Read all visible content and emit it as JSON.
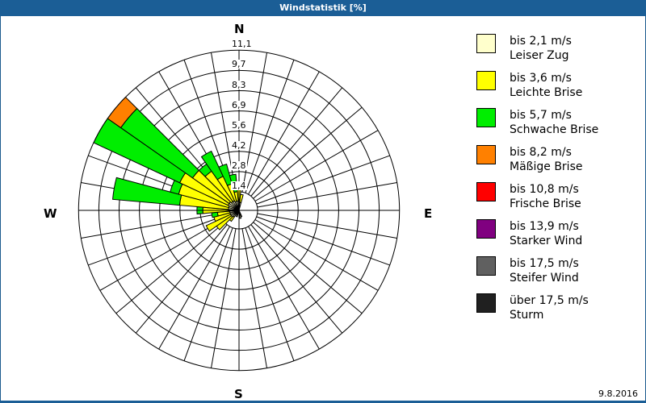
{
  "window": {
    "title": "Windstatistik [%]"
  },
  "footer": {
    "date": "9.8.2016"
  },
  "compass": {
    "n": "N",
    "e": "E",
    "s": "S",
    "w": "W"
  },
  "chart_data": {
    "type": "polar-bar (wind rose)",
    "title": "Windstatistik [%]",
    "radial_ticks": [
      "1,4",
      "2,8",
      "4,2",
      "5,6",
      "6,9",
      "8,3",
      "9,7",
      "11,1"
    ],
    "radial_range": [
      0,
      11.1
    ],
    "sector_width_deg": 10,
    "classes": [
      {
        "label": "bis 2,1 m/s",
        "name": "Leiser Zug",
        "color": "#ffffcc"
      },
      {
        "label": "bis 3,6 m/s",
        "name": "Leichte Brise",
        "color": "#ffff00"
      },
      {
        "label": "bis 5,7 m/s",
        "name": "Schwache Brise",
        "color": "#00ee00"
      },
      {
        "label": "bis 8,2 m/s",
        "name": "Mäßige Brise",
        "color": "#ff8000"
      },
      {
        "label": "bis 10,8 m/s",
        "name": "Frische Brise",
        "color": "#ff0000"
      },
      {
        "label": "bis 13,9 m/s",
        "name": "Starker Wind",
        "color": "#800080"
      },
      {
        "label": "bis 17,5 m/s",
        "name": "Steifer Wind",
        "color": "#606060"
      },
      {
        "label": "über 17,5 m/s",
        "name": "Sturm",
        "color": "#202020"
      }
    ],
    "sectors_note": "cumulative percent per class at sector direction (degrees)",
    "sectors": [
      {
        "dir": 0,
        "cum": [
          0.8,
          1.6,
          2.0
        ]
      },
      {
        "dir": 10,
        "cum": [
          0.6,
          1.2,
          1.2
        ]
      },
      {
        "dir": 160,
        "cum": [
          0.5,
          0.5,
          0.5
        ]
      },
      {
        "dir": 170,
        "cum": [
          0.6,
          0.6,
          0.6
        ]
      },
      {
        "dir": 200,
        "cum": [
          0.5,
          0.5,
          0.5
        ]
      },
      {
        "dir": 220,
        "cum": [
          0.6,
          1.0,
          1.0
        ]
      },
      {
        "dir": 230,
        "cum": [
          0.7,
          2.0,
          2.0
        ]
      },
      {
        "dir": 240,
        "cum": [
          0.7,
          2.6,
          2.6
        ]
      },
      {
        "dir": 250,
        "cum": [
          0.7,
          1.9,
          1.9
        ]
      },
      {
        "dir": 260,
        "cum": [
          0.7,
          1.6,
          2.0
        ]
      },
      {
        "dir": 270,
        "cum": [
          0.8,
          2.6,
          3.0
        ]
      },
      {
        "dir": 280,
        "cum": [
          0.8,
          4.2,
          8.8
        ]
      },
      {
        "dir": 290,
        "cum": [
          0.8,
          4.4,
          5.0
        ]
      },
      {
        "dir": 300,
        "cum": [
          0.9,
          4.6,
          11.1
        ]
      },
      {
        "dir": 310,
        "cum": [
          0.9,
          4.0,
          10.0,
          11.1
        ]
      },
      {
        "dir": 320,
        "cum": [
          0.8,
          3.4,
          4.0
        ]
      },
      {
        "dir": 330,
        "cum": [
          0.8,
          2.7,
          4.6
        ]
      },
      {
        "dir": 340,
        "cum": [
          0.7,
          2.0,
          3.4
        ]
      },
      {
        "dir": 350,
        "cum": [
          0.7,
          1.4,
          2.6
        ]
      }
    ]
  },
  "legend": [
    {
      "range": "bis 2,1 m/s",
      "name": "Leiser Zug",
      "color": "#ffffcc"
    },
    {
      "range": "bis 3,6 m/s",
      "name": "Leichte Brise",
      "color": "#ffff00"
    },
    {
      "range": "bis 5,7 m/s",
      "name": "Schwache Brise",
      "color": "#00ee00"
    },
    {
      "range": "bis 8,2 m/s",
      "name": "Mäßige Brise",
      "color": "#ff8000"
    },
    {
      "range": "bis 10,8 m/s",
      "name": "Frische Brise",
      "color": "#ff0000"
    },
    {
      "range": "bis 13,9 m/s",
      "name": "Starker Wind",
      "color": "#800080"
    },
    {
      "range": "bis 17,5 m/s",
      "name": "Steifer Wind",
      "color": "#606060"
    },
    {
      "range": "über 17,5 m/s",
      "name": "Sturm",
      "color": "#202020"
    }
  ]
}
